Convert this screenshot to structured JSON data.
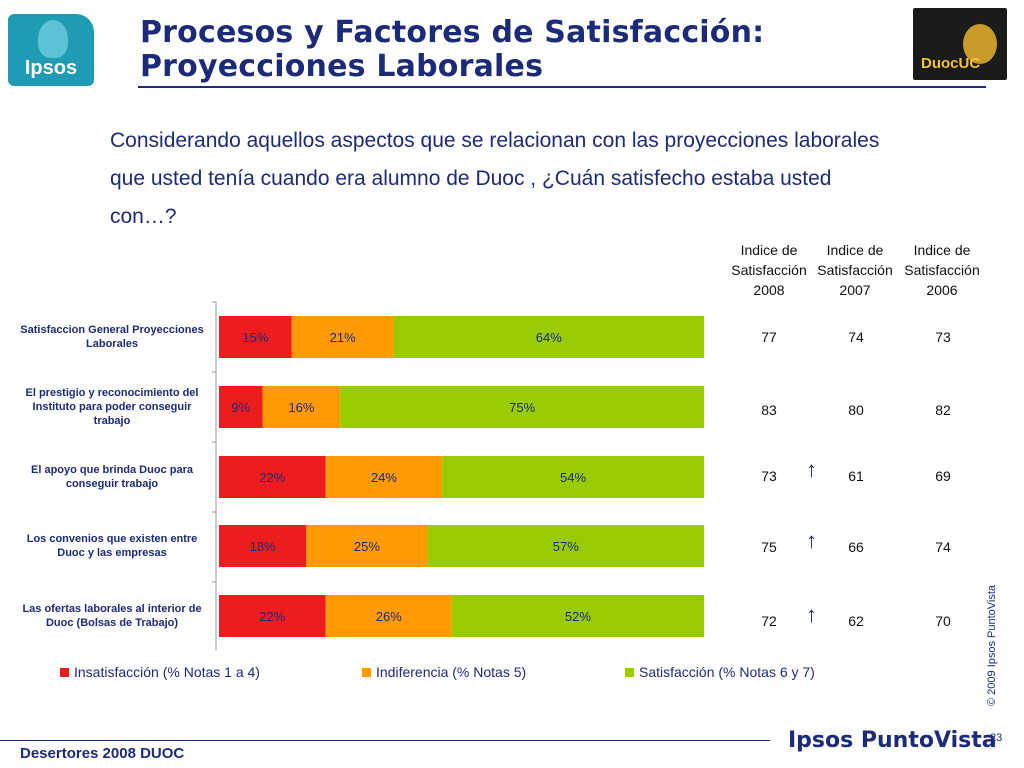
{
  "header": {
    "logo_left": "Ipsos",
    "title_line1": "Procesos y Factores de Satisfacción:",
    "title_line2": "Proyecciones Laborales",
    "logo_right": "DuocUC"
  },
  "question": "Considerando aquellos aspectos que se relacionan con las proyecciones laborales que usted tenía cuando era alumno de Duoc , ¿Cuán satisfecho estaba usted con…?",
  "index_headers": [
    {
      "l1": "Indice de",
      "l2": "Satisfacción",
      "l3": "2008"
    },
    {
      "l1": "Indice de",
      "l2": "Satisfacción",
      "l3": "2007"
    },
    {
      "l1": "Indice de",
      "l2": "Satisfacción",
      "l3": "2006"
    }
  ],
  "chart_data": {
    "type": "bar",
    "orientation": "horizontal",
    "stacked": true,
    "percent_scale": true,
    "categories": [
      "Satisfaccion General Proyecciones Laborales",
      "El prestigio y reconocimiento del Instituto para poder conseguir trabajo",
      "El apoyo que brinda Duoc para conseguir trabajo",
      "Los convenios que existen entre Duoc y las empresas",
      "Las ofertas laborales al interior de Duoc (Bolsas de Trabajo)"
    ],
    "series": [
      {
        "name": "Insatisfacción (% Notas 1 a 4)",
        "color": "#ee1c1c",
        "values": [
          15,
          9,
          22,
          18,
          22
        ],
        "labels": [
          "15%",
          "9%",
          "22%",
          "18%",
          "22%"
        ]
      },
      {
        "name": "Indiferencia (% Notas 5)",
        "color": "#ff9a00",
        "values": [
          21,
          16,
          24,
          25,
          26
        ],
        "labels": [
          "21%",
          "16%",
          "24%",
          "25%",
          "26%"
        ]
      },
      {
        "name": "Satisfacción (% Notas 6 y 7)",
        "color": "#99cc00",
        "values": [
          64,
          75,
          54,
          57,
          52
        ],
        "labels": [
          "64%",
          "75%",
          "54%",
          "57%",
          "52%"
        ]
      }
    ],
    "legend_position": "bottom",
    "xlim": [
      0,
      100
    ],
    "grid": false
  },
  "index_values": [
    {
      "y2008": "77",
      "y2007": "74",
      "y2006": "73",
      "up": false
    },
    {
      "y2008": "83",
      "y2007": "80",
      "y2006": "82",
      "up": false
    },
    {
      "y2008": "73",
      "y2007": "61",
      "y2006": "69",
      "up": true
    },
    {
      "y2008": "75",
      "y2007": "66",
      "y2006": "74",
      "up": true
    },
    {
      "y2008": "72",
      "y2007": "62",
      "y2006": "70",
      "up": true
    }
  ],
  "arrow_glyph": "↑",
  "copyright": "© 2009 Ipsos PuntoVista",
  "footer": {
    "left": "Desertores 2008 DUOC",
    "logo": "Ipsos PuntoVista",
    "page": "23"
  }
}
